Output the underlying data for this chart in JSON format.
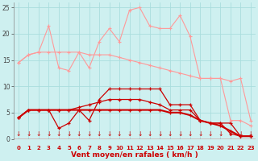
{
  "x": [
    0,
    1,
    2,
    3,
    4,
    5,
    6,
    7,
    8,
    9,
    10,
    11,
    12,
    13,
    14,
    15,
    16,
    17,
    18,
    19,
    20,
    21,
    22,
    23
  ],
  "line1_light": [
    14.5,
    16.0,
    16.5,
    21.5,
    13.5,
    13.0,
    16.5,
    13.5,
    18.5,
    21.0,
    18.5,
    24.5,
    25.0,
    21.5,
    21.0,
    21.0,
    23.5,
    19.5,
    11.5,
    11.5,
    11.5,
    3.5,
    3.5,
    2.5
  ],
  "line2_light": [
    14.5,
    16.0,
    16.5,
    16.5,
    16.5,
    16.5,
    16.5,
    16.0,
    16.0,
    16.0,
    15.5,
    15.0,
    14.5,
    14.0,
    13.5,
    13.0,
    12.5,
    12.0,
    11.5,
    11.5,
    11.5,
    11.0,
    11.5,
    3.5
  ],
  "line3_dark": [
    4.0,
    5.5,
    5.5,
    5.5,
    2.0,
    3.0,
    5.5,
    3.5,
    7.5,
    9.5,
    9.5,
    9.5,
    9.5,
    9.5,
    9.5,
    6.5,
    6.5,
    6.5,
    3.5,
    3.0,
    3.0,
    1.0,
    0.5,
    0.5
  ],
  "line4_dark": [
    4.0,
    5.5,
    5.5,
    5.5,
    5.5,
    5.5,
    6.0,
    6.5,
    7.0,
    7.5,
    7.5,
    7.5,
    7.5,
    7.0,
    6.5,
    5.5,
    5.5,
    5.5,
    3.5,
    3.0,
    3.0,
    3.0,
    0.5,
    0.5
  ],
  "line5_dark": [
    4.0,
    5.5,
    5.5,
    5.5,
    5.5,
    5.5,
    5.5,
    5.5,
    5.5,
    5.5,
    5.5,
    5.5,
    5.5,
    5.5,
    5.5,
    5.0,
    5.0,
    4.5,
    3.5,
    3.0,
    2.5,
    1.5,
    0.5,
    0.5
  ],
  "bg_color": "#cef0f0",
  "grid_color": "#aadddd",
  "color_light": "#ff9999",
  "color_dark": "#cc0000",
  "xlabel": "Vent moyen/en rafales ( km/h )",
  "ylim": [
    0,
    26
  ],
  "xlim": [
    -0.5,
    23.5
  ],
  "yticks": [
    0,
    5,
    10,
    15,
    20,
    25
  ],
  "xticks": [
    0,
    1,
    2,
    3,
    4,
    5,
    6,
    7,
    8,
    9,
    10,
    11,
    12,
    13,
    14,
    15,
    16,
    17,
    18,
    19,
    20,
    21,
    22,
    23
  ]
}
